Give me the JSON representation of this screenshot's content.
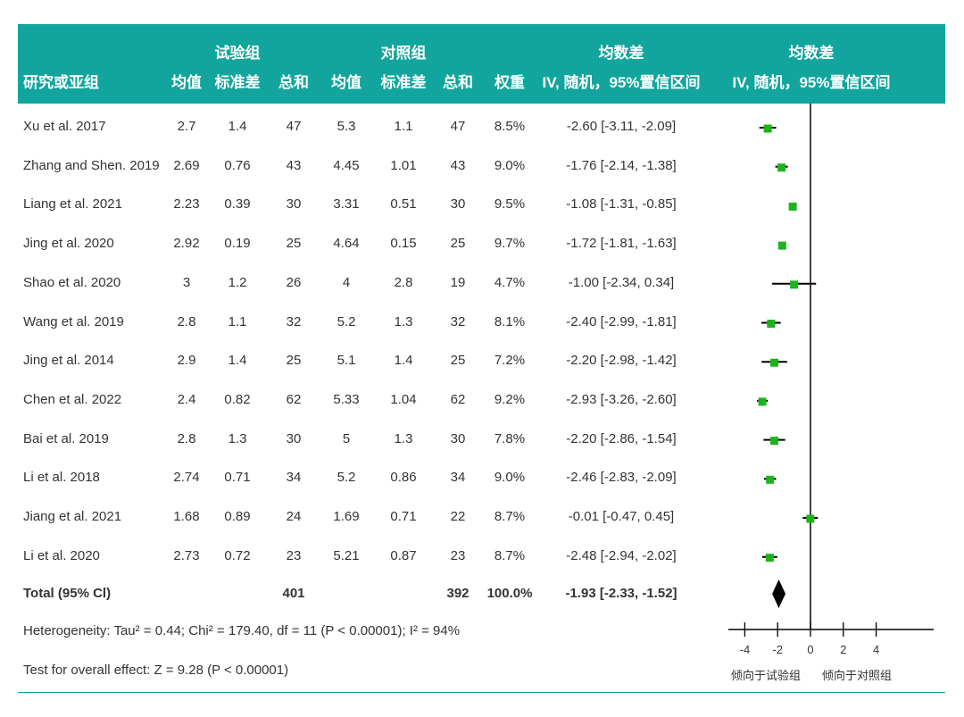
{
  "header": {
    "group1": "试验组",
    "group2": "对照组",
    "md_title1": "均数差",
    "md_title2": "均数差",
    "col_study": "研究或亚组",
    "col_mean1": "均值",
    "col_sd1": "标准差",
    "col_total1": "总和",
    "col_mean2": "均值",
    "col_sd2": "标准差",
    "col_total2": "总和",
    "col_weight": "权重",
    "col_ci": "IV, 随机，95%置信区间",
    "col_plot": "IV, 随机，95%置信区间"
  },
  "rows": [
    {
      "study": "Xu et al. 2017",
      "m1": "2.7",
      "sd1": "1.4",
      "n1": "47",
      "m2": "5.3",
      "sd2": "1.1",
      "n2": "47",
      "weight": "8.5%",
      "ci": "-2.60 [-3.11, -2.09]"
    },
    {
      "study": "Zhang and Shen. 2019",
      "m1": "2.69",
      "sd1": "0.76",
      "n1": "43",
      "m2": "4.45",
      "sd2": "1.01",
      "n2": "43",
      "weight": "9.0%",
      "ci": "-1.76 [-2.14, -1.38]"
    },
    {
      "study": "Liang et al. 2021",
      "m1": "2.23",
      "sd1": "0.39",
      "n1": "30",
      "m2": "3.31",
      "sd2": "0.51",
      "n2": "30",
      "weight": "9.5%",
      "ci": "-1.08 [-1.31, -0.85]"
    },
    {
      "study": "Jing et al. 2020",
      "m1": "2.92",
      "sd1": "0.19",
      "n1": "25",
      "m2": "4.64",
      "sd2": "0.15",
      "n2": "25",
      "weight": "9.7%",
      "ci": "-1.72 [-1.81, -1.63]"
    },
    {
      "study": "Shao et al. 2020",
      "m1": "3",
      "sd1": "1.2",
      "n1": "26",
      "m2": "4",
      "sd2": "2.8",
      "n2": "19",
      "weight": "4.7%",
      "ci": "-1.00 [-2.34, 0.34]"
    },
    {
      "study": "Wang et al. 2019",
      "m1": "2.8",
      "sd1": "1.1",
      "n1": "32",
      "m2": "5.2",
      "sd2": "1.3",
      "n2": "32",
      "weight": "8.1%",
      "ci": "-2.40 [-2.99, -1.81]"
    },
    {
      "study": "Jing et al. 2014",
      "m1": "2.9",
      "sd1": "1.4",
      "n1": "25",
      "m2": "5.1",
      "sd2": "1.4",
      "n2": "25",
      "weight": "7.2%",
      "ci": "-2.20 [-2.98, -1.42]"
    },
    {
      "study": "Chen et al. 2022",
      "m1": "2.4",
      "sd1": "0.82",
      "n1": "62",
      "m2": "5.33",
      "sd2": "1.04",
      "n2": "62",
      "weight": "9.2%",
      "ci": "-2.93 [-3.26, -2.60]"
    },
    {
      "study": "Bai et al. 2019",
      "m1": "2.8",
      "sd1": "1.3",
      "n1": "30",
      "m2": "5",
      "sd2": "1.3",
      "n2": "30",
      "weight": "7.8%",
      "ci": "-2.20 [-2.86, -1.54]"
    },
    {
      "study": "Li et al. 2018",
      "m1": "2.74",
      "sd1": "0.71",
      "n1": "34",
      "m2": "5.2",
      "sd2": "0.86",
      "n2": "34",
      "weight": "9.0%",
      "ci": "-2.46 [-2.83, -2.09]"
    },
    {
      "study": "Jiang et al. 2021",
      "m1": "1.68",
      "sd1": "0.89",
      "n1": "24",
      "m2": "1.69",
      "sd2": "0.71",
      "n2": "22",
      "weight": "8.7%",
      "ci": "-0.01 [-0.47, 0.45]"
    },
    {
      "study": "Li et al. 2020",
      "m1": "2.73",
      "sd1": "0.72",
      "n1": "23",
      "m2": "5.21",
      "sd2": "0.87",
      "n2": "23",
      "weight": "8.7%",
      "ci": "-2.48 [-2.94, -2.02]"
    }
  ],
  "total": {
    "label": "Total (95% Cl)",
    "n1": "401",
    "n2": "392",
    "weight": "100.0%",
    "ci": "-1.93 [-2.33, -1.52]"
  },
  "heterogeneity": "Heterogeneity:  Tau² = 0.44; Chi² = 179.40, df = 11 (P < 0.00001); I² = 94%",
  "overall_effect": "Test for overall effect: Z = 9.28 (P < 0.00001)",
  "colors": {
    "header_bg": "#12a59d",
    "marker": "#1db31d",
    "diamond": "#000000"
  },
  "chart_data": {
    "type": "forest",
    "xlim": [
      -5.0,
      7.5
    ],
    "xticks": [
      -4,
      -2,
      0,
      2,
      4
    ],
    "xtick_labels": [
      "-4",
      "-2",
      "0",
      "2",
      "4"
    ],
    "left_label": "倾向于试验组",
    "right_label": "倾向于对照组",
    "studies": [
      {
        "est": -2.6,
        "lo": -3.11,
        "hi": -2.09
      },
      {
        "est": -1.76,
        "lo": -2.14,
        "hi": -1.38
      },
      {
        "est": -1.08,
        "lo": -1.31,
        "hi": -0.85
      },
      {
        "est": -1.72,
        "lo": -1.81,
        "hi": -1.63
      },
      {
        "est": -1.0,
        "lo": -2.34,
        "hi": 0.34
      },
      {
        "est": -2.4,
        "lo": -2.99,
        "hi": -1.81
      },
      {
        "est": -2.2,
        "lo": -2.98,
        "hi": -1.42
      },
      {
        "est": -2.93,
        "lo": -3.26,
        "hi": -2.6
      },
      {
        "est": -2.2,
        "lo": -2.86,
        "hi": -1.54
      },
      {
        "est": -2.46,
        "lo": -2.83,
        "hi": -2.09
      },
      {
        "est": -0.01,
        "lo": -0.47,
        "hi": 0.45
      },
      {
        "est": -2.48,
        "lo": -2.94,
        "hi": -2.02
      }
    ],
    "pooled": {
      "est": -1.93,
      "lo": -2.33,
      "hi": -1.52
    }
  }
}
